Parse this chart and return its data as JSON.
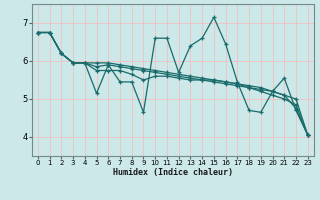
{
  "title": "",
  "xlabel": "Humidex (Indice chaleur)",
  "bg_color": "#cce8e8",
  "grid_color": "#f0c0c0",
  "line_color": "#1a6b6b",
  "xlim": [
    -0.5,
    23.5
  ],
  "ylim": [
    3.5,
    7.5
  ],
  "yticks": [
    4,
    5,
    6,
    7
  ],
  "xticks": [
    0,
    1,
    2,
    3,
    4,
    5,
    6,
    7,
    8,
    9,
    10,
    11,
    12,
    13,
    14,
    15,
    16,
    17,
    18,
    19,
    20,
    21,
    22,
    23
  ],
  "lines": [
    [
      6.75,
      6.75,
      6.2,
      5.95,
      5.95,
      5.15,
      5.9,
      5.45,
      5.45,
      4.65,
      6.6,
      6.6,
      5.7,
      6.4,
      6.6,
      7.15,
      6.45,
      5.45,
      4.7,
      4.65,
      5.2,
      5.55,
      4.7,
      4.05
    ],
    [
      6.75,
      6.75,
      6.2,
      5.95,
      5.95,
      5.75,
      5.75,
      5.75,
      5.65,
      5.5,
      5.6,
      5.6,
      5.55,
      5.5,
      5.5,
      5.5,
      5.45,
      5.4,
      5.3,
      5.25,
      5.2,
      5.1,
      4.75,
      4.05
    ],
    [
      6.75,
      6.75,
      6.2,
      5.95,
      5.95,
      5.85,
      5.9,
      5.85,
      5.8,
      5.75,
      5.7,
      5.65,
      5.6,
      5.55,
      5.5,
      5.45,
      5.4,
      5.35,
      5.3,
      5.2,
      5.1,
      5.0,
      4.85,
      4.05
    ],
    [
      6.75,
      6.75,
      6.2,
      5.95,
      5.95,
      5.95,
      5.95,
      5.9,
      5.85,
      5.8,
      5.75,
      5.7,
      5.65,
      5.6,
      5.55,
      5.5,
      5.45,
      5.4,
      5.35,
      5.3,
      5.2,
      5.1,
      5.0,
      4.05
    ]
  ]
}
